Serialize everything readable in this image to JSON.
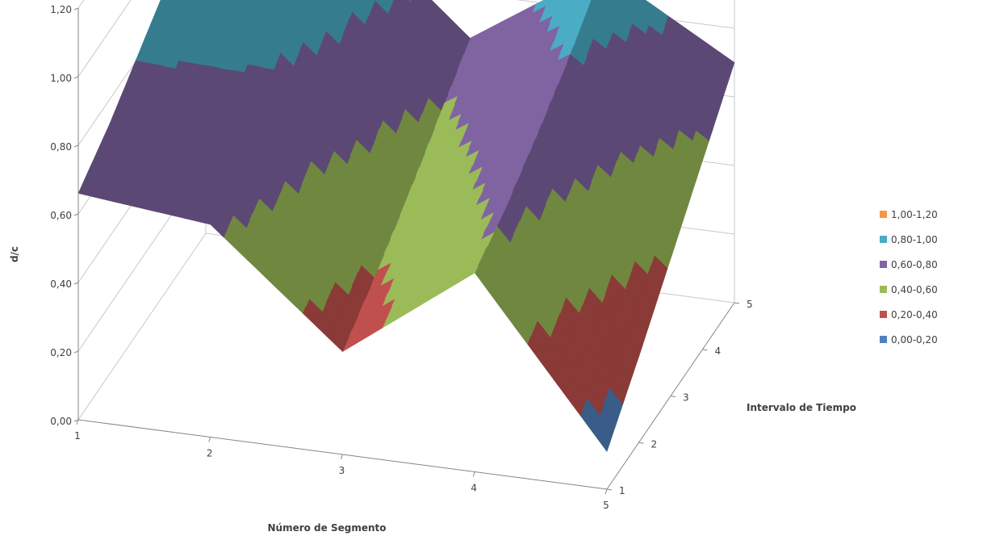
{
  "chart_data": {
    "type": "surface",
    "ylabel": "d/c",
    "xlabel": "Número de Segmento",
    "zlabel": "Intervalo de Tiempo",
    "y_ticks": [
      "0,00",
      "0,20",
      "0,40",
      "0,60",
      "0,80",
      "1,00",
      "1,20"
    ],
    "x_ticks": [
      "1",
      "2",
      "3",
      "4",
      "5"
    ],
    "z_ticks": [
      "1",
      "2",
      "3",
      "4",
      "5"
    ],
    "ylim": [
      0,
      1.2
    ],
    "grid": true,
    "legend_position": "right",
    "segments": [
      1,
      2,
      3,
      4,
      5
    ],
    "time_intervals": [
      1,
      2,
      3,
      4,
      5
    ],
    "values": [
      [
        0.66,
        0.62,
        0.3,
        0.58,
        0.11
      ],
      [
        0.73,
        0.7,
        0.38,
        0.64,
        0.25
      ],
      [
        0.82,
        0.8,
        0.47,
        0.72,
        0.4
      ],
      [
        0.91,
        0.9,
        0.57,
        0.81,
        0.55
      ],
      [
        1.0,
        1.0,
        0.67,
        0.92,
        0.7
      ]
    ],
    "bands": [
      {
        "label": "1,00-1,20",
        "min": 1.0,
        "max": 1.2,
        "color": "#f79646"
      },
      {
        "label": "0,80-1,00",
        "min": 0.8,
        "max": 1.0,
        "color": "#4bacc6"
      },
      {
        "label": "0,60-0,80",
        "min": 0.6,
        "max": 0.8,
        "color": "#8064a2"
      },
      {
        "label": "0,40-0,60",
        "min": 0.4,
        "max": 0.6,
        "color": "#9bbb59"
      },
      {
        "label": "0,20-0,40",
        "min": 0.2,
        "max": 0.4,
        "color": "#c0504d"
      },
      {
        "label": "0,00-0,20",
        "min": 0.0,
        "max": 0.2,
        "color": "#4f81bd"
      }
    ]
  }
}
